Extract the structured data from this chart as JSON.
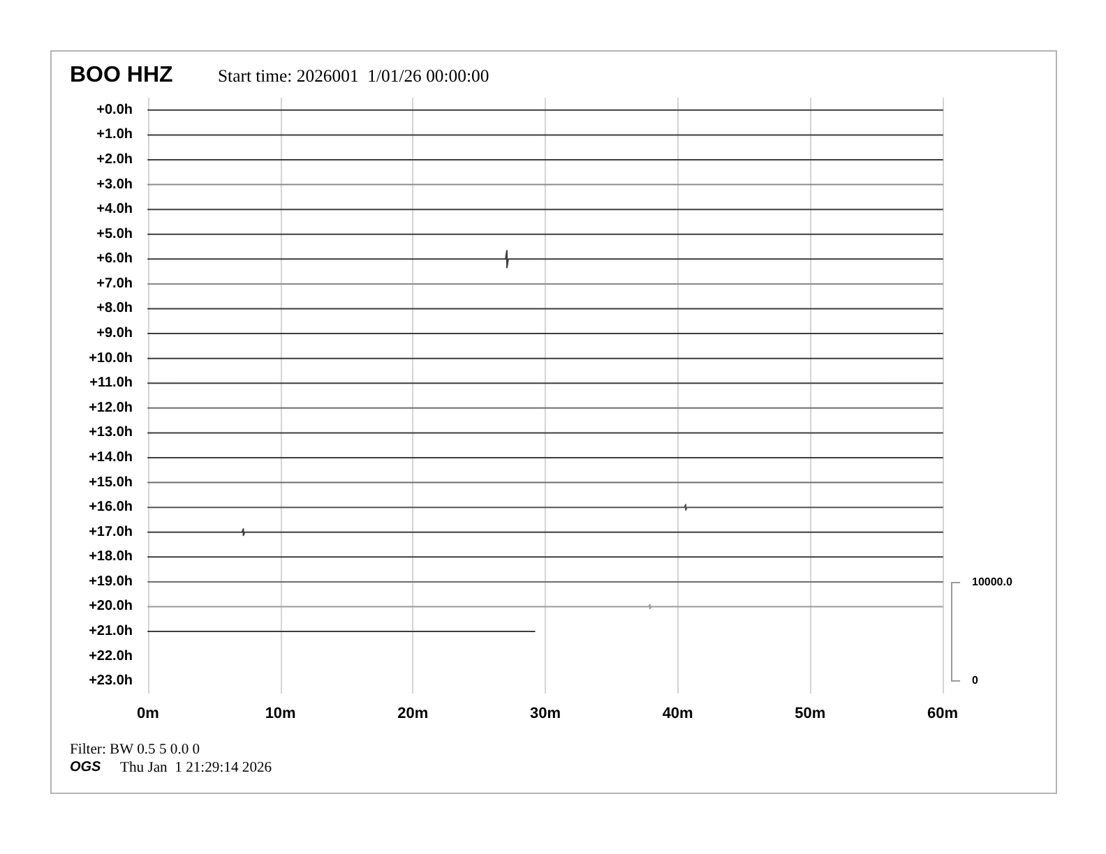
{
  "chart_data": {
    "type": "line",
    "title": "BOO HHZ",
    "subtitle": "Start time: 2026001  1/01/26 00:00:00",
    "annotations": [
      "10000.0",
      "0",
      "Filter: BW 0.5 5 0.0 0",
      "OGS",
      "Thu Jan  1 21:29:14 2026"
    ],
    "xlim": [
      0,
      60
    ],
    "xticks": [
      {
        "value": 0,
        "label": "0m"
      },
      {
        "value": 10,
        "label": "10m"
      },
      {
        "value": 20,
        "label": "20m"
      },
      {
        "value": 30,
        "label": "30m"
      },
      {
        "value": 40,
        "label": "40m"
      },
      {
        "value": 50,
        "label": "50m"
      },
      {
        "value": 60,
        "label": "60m"
      }
    ],
    "ylim": [
      -23.5,
      0.5
    ],
    "yticks": [
      {
        "value": 0,
        "label": "+0.0h"
      },
      {
        "value": -1,
        "label": "+1.0h"
      },
      {
        "value": -2,
        "label": "+2.0h"
      },
      {
        "value": -3,
        "label": "+3.0h"
      },
      {
        "value": -4,
        "label": "+4.0h"
      },
      {
        "value": -5,
        "label": "+5.0h"
      },
      {
        "value": -6,
        "label": "+6.0h"
      },
      {
        "value": -7,
        "label": "+7.0h"
      },
      {
        "value": -8,
        "label": "+8.0h"
      },
      {
        "value": -9,
        "label": "+9.0h"
      },
      {
        "value": -10,
        "label": "+10.0h"
      },
      {
        "value": -11,
        "label": "+11.0h"
      },
      {
        "value": -12,
        "label": "+12.0h"
      },
      {
        "value": -13,
        "label": "+13.0h"
      },
      {
        "value": -14,
        "label": "+14.0h"
      },
      {
        "value": -15,
        "label": "+15.0h"
      },
      {
        "value": -16,
        "label": "+16.0h"
      },
      {
        "value": -17,
        "label": "+17.0h"
      },
      {
        "value": -18,
        "label": "+18.0h"
      },
      {
        "value": -19,
        "label": "+19.0h"
      },
      {
        "value": -20,
        "label": "+20.0h"
      },
      {
        "value": -21,
        "label": "+21.0h"
      },
      {
        "value": -22,
        "label": "+22.0h"
      },
      {
        "value": -23,
        "label": "+23.0h"
      }
    ],
    "grid": "x",
    "marker": "none",
    "line_style": "solid",
    "series": [
      {
        "color": "#3c3c3c",
        "x": [
          0,
          60
        ],
        "values": [
          0,
          0
        ]
      },
      {
        "color": "#3c3c3c",
        "x": [
          0,
          60
        ],
        "values": [
          -1,
          -1
        ]
      },
      {
        "color": "#3c3c3c",
        "x": [
          0,
          60
        ],
        "values": [
          -2,
          -2
        ]
      },
      {
        "color": "#8a8a8a",
        "x": [
          0,
          60
        ],
        "values": [
          -3,
          -3
        ]
      },
      {
        "color": "#3c3c3c",
        "x": [
          0,
          60
        ],
        "values": [
          -4,
          -4
        ]
      },
      {
        "color": "#3c3c3c",
        "x": [
          0,
          60
        ],
        "values": [
          -5,
          -5
        ]
      },
      {
        "color": "#3c3c3c",
        "x": [
          0,
          27.0,
          27.1,
          27.1,
          27.2,
          60
        ],
        "values": [
          -6,
          -6,
          -5.66,
          -6.34,
          -6,
          -6
        ]
      },
      {
        "color": "#8a8a8a",
        "x": [
          0,
          60
        ],
        "values": [
          -7,
          -7
        ]
      },
      {
        "color": "#3c3c3c",
        "x": [
          0,
          60
        ],
        "values": [
          -8,
          -8
        ]
      },
      {
        "color": "#3c3c3c",
        "x": [
          0,
          60
        ],
        "values": [
          -9,
          -9
        ]
      },
      {
        "color": "#3c3c3c",
        "x": [
          0,
          60
        ],
        "values": [
          -10,
          -10
        ]
      },
      {
        "color": "#3c3c3c",
        "x": [
          0,
          60
        ],
        "values": [
          -11,
          -11
        ]
      },
      {
        "color": "#6e6e6e",
        "x": [
          0,
          60
        ],
        "values": [
          -12,
          -12
        ]
      },
      {
        "color": "#3c3c3c",
        "x": [
          0,
          60
        ],
        "values": [
          -13,
          -13
        ]
      },
      {
        "color": "#3c3c3c",
        "x": [
          0,
          60
        ],
        "values": [
          -14,
          -14
        ]
      },
      {
        "color": "#6e6e6e",
        "x": [
          0,
          60
        ],
        "values": [
          -15,
          -15
        ]
      },
      {
        "color": "#555555",
        "x": [
          0,
          40.5,
          40.6,
          40.6,
          40.7,
          60
        ],
        "values": [
          -16,
          -16,
          -15.89,
          -16.11,
          -16,
          -16
        ]
      },
      {
        "color": "#3c3c3c",
        "x": [
          0,
          7.1,
          7.2,
          7.2,
          7.3,
          60
        ],
        "values": [
          -17,
          -17,
          -16.87,
          -17.13,
          -17,
          -17
        ]
      },
      {
        "color": "#3c3c3c",
        "x": [
          0,
          60
        ],
        "values": [
          -18,
          -18
        ]
      },
      {
        "color": "#6e6e6e",
        "x": [
          0,
          60
        ],
        "values": [
          -19,
          -19
        ]
      },
      {
        "color": "#9a9a9a",
        "x": [
          0,
          37.8,
          37.9,
          37.9,
          38.0,
          60
        ],
        "values": [
          -20,
          -20,
          -19.92,
          -20.08,
          -20,
          -20
        ]
      },
      {
        "color": "#3c3c3c",
        "x": [
          0,
          29.2
        ],
        "values": [
          -21,
          -21
        ]
      }
    ]
  }
}
